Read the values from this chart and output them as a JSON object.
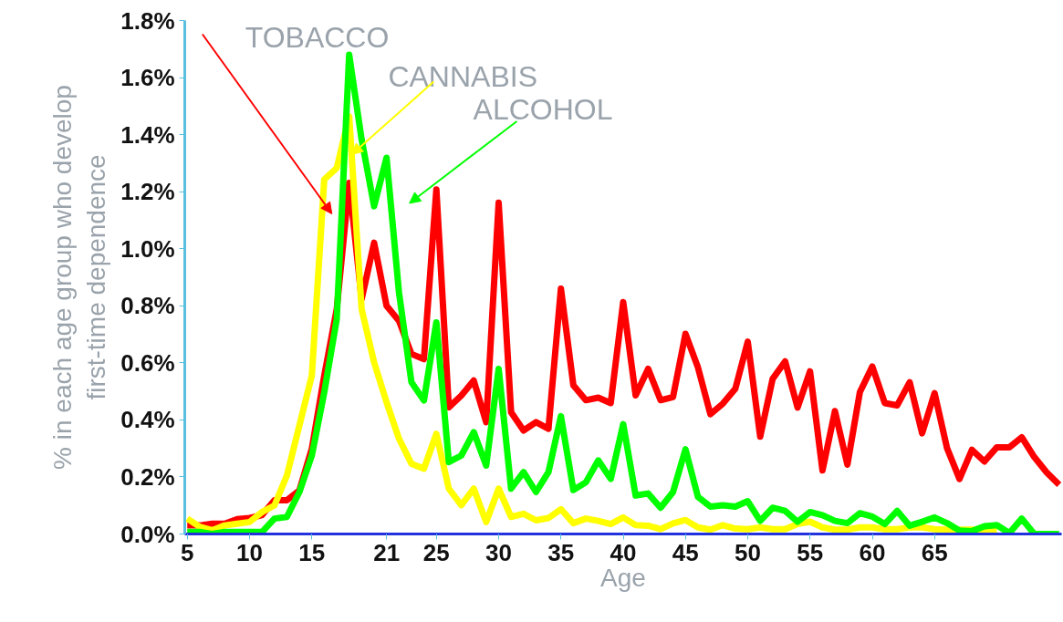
{
  "chart_data": {
    "type": "line",
    "xlabel": "Age",
    "ylabel": "% in each age group who develop\nfirst-time dependence",
    "xlim": [
      4.8,
      75.2
    ],
    "xticks": [
      5,
      10,
      15,
      21,
      25,
      30,
      35,
      40,
      45,
      50,
      55,
      60,
      65
    ],
    "ylim": [
      0,
      1.8
    ],
    "yticks": [
      {
        "value": 0,
        "label": "0.0%"
      },
      {
        "value": 0.2,
        "label": "0.2%"
      },
      {
        "value": 0.4,
        "label": "0.4%"
      },
      {
        "value": 0.6,
        "label": "0.6%"
      },
      {
        "value": 0.8,
        "label": "0.8%"
      },
      {
        "value": 1.0,
        "label": "1.0%"
      },
      {
        "value": 1.2,
        "label": "1.2%"
      },
      {
        "value": 1.4,
        "label": "1.4%"
      },
      {
        "value": 1.6,
        "label": "1.6%"
      },
      {
        "value": 1.8,
        "label": "1.8%"
      }
    ],
    "grid": false,
    "line_style": "solid",
    "annotations": [
      "TOBACCO",
      {
        "text": "CANNABIS",
        "x": 18.2,
        "y": 1.33
      },
      "ALCOHOL"
    ],
    "series": [
      {
        "color": "#ff0000",
        "x": [
          5,
          6,
          7,
          8,
          9,
          10,
          11,
          12,
          13,
          14,
          15,
          16,
          17,
          18,
          19,
          20,
          21,
          22,
          23,
          24,
          25,
          26,
          27,
          28,
          29,
          30,
          31,
          32,
          33,
          34,
          35,
          36,
          37,
          38,
          39,
          40,
          41,
          42,
          43,
          44,
          45,
          46,
          47,
          48,
          49,
          50,
          51,
          52,
          53,
          54,
          55,
          56,
          57,
          58,
          59,
          60,
          61,
          62,
          63,
          64,
          65,
          66,
          67,
          68,
          69,
          70,
          71,
          72,
          73,
          74,
          75
        ],
        "values": [
          0.03,
          0.03,
          0.036,
          0.036,
          0.052,
          0.056,
          0.066,
          0.118,
          0.118,
          0.153,
          0.299,
          0.555,
          0.788,
          1.231,
          0.823,
          1.021,
          0.8,
          0.747,
          0.631,
          0.613,
          1.208,
          0.444,
          0.485,
          0.538,
          0.392,
          1.161,
          0.427,
          0.363,
          0.392,
          0.369,
          0.86,
          0.521,
          0.469,
          0.478,
          0.459,
          0.813,
          0.486,
          0.579,
          0.469,
          0.48,
          0.702,
          0.584,
          0.42,
          0.457,
          0.509,
          0.674,
          0.341,
          0.544,
          0.605,
          0.443,
          0.57,
          0.223,
          0.431,
          0.243,
          0.497,
          0.587,
          0.459,
          0.451,
          0.532,
          0.353,
          0.494,
          0.301,
          0.193,
          0.295,
          0.254,
          0.304,
          0.304,
          0.339,
          0.27,
          0.216,
          0.173
        ]
      },
      {
        "color": "#ffff00",
        "x": [
          5,
          6,
          7,
          8,
          9,
          10,
          11,
          12,
          13,
          14,
          15,
          16,
          17,
          18,
          19,
          20,
          21,
          22,
          23,
          24,
          25,
          26,
          27,
          28,
          29,
          30,
          31,
          32,
          33,
          34,
          35,
          36,
          37,
          38,
          39,
          40,
          41,
          42,
          43,
          44,
          45,
          46,
          47,
          48,
          49,
          50,
          51,
          52,
          53,
          54,
          55,
          56,
          57,
          58,
          59,
          60,
          61,
          62,
          63,
          64,
          65,
          66,
          67,
          68,
          69,
          70
        ],
        "values": [
          0.054,
          0.025,
          0.013,
          0.03,
          0.036,
          0.042,
          0.077,
          0.1,
          0.205,
          0.38,
          0.555,
          1.243,
          1.283,
          1.464,
          0.788,
          0.602,
          0.462,
          0.334,
          0.246,
          0.229,
          0.351,
          0.159,
          0.101,
          0.159,
          0.042,
          0.159,
          0.06,
          0.071,
          0.048,
          0.056,
          0.087,
          0.038,
          0.054,
          0.046,
          0.035,
          0.058,
          0.031,
          0.029,
          0.017,
          0.037,
          0.049,
          0.023,
          0.015,
          0.031,
          0.019,
          0.017,
          0.023,
          0.017,
          0.017,
          0.035,
          0.043,
          0.023,
          0.015,
          0.015,
          0.023,
          0.023,
          0.017,
          0.017,
          0.023,
          0.023,
          0.017,
          0.015,
          0.015,
          0.015,
          0.015,
          0.015
        ]
      },
      {
        "color": "#00ff00",
        "x": [
          5,
          6,
          7,
          8,
          9,
          10,
          11,
          12,
          13,
          14,
          15,
          16,
          17,
          18,
          19,
          20,
          21,
          22,
          23,
          24,
          25,
          26,
          27,
          28,
          29,
          30,
          31,
          32,
          33,
          34,
          35,
          36,
          37,
          38,
          39,
          40,
          41,
          42,
          43,
          44,
          45,
          46,
          47,
          48,
          49,
          50,
          51,
          52,
          53,
          54,
          55,
          56,
          57,
          58,
          59,
          60,
          61,
          62,
          63,
          64,
          65,
          66,
          67,
          68,
          69,
          70,
          71,
          72,
          73,
          74,
          75
        ],
        "values": [
          0.007,
          0.007,
          0.0,
          0.007,
          0.007,
          0.007,
          0.007,
          0.054,
          0.06,
          0.147,
          0.275,
          0.497,
          0.753,
          1.68,
          1.383,
          1.149,
          1.319,
          0.846,
          0.532,
          0.468,
          0.742,
          0.252,
          0.275,
          0.357,
          0.24,
          0.579,
          0.159,
          0.217,
          0.147,
          0.217,
          0.413,
          0.154,
          0.181,
          0.258,
          0.193,
          0.385,
          0.135,
          0.142,
          0.092,
          0.147,
          0.297,
          0.13,
          0.096,
          0.101,
          0.096,
          0.115,
          0.046,
          0.092,
          0.081,
          0.043,
          0.077,
          0.066,
          0.046,
          0.038,
          0.073,
          0.061,
          0.035,
          0.081,
          0.029,
          0.043,
          0.058,
          0.038,
          0.012,
          0.01,
          0.027,
          0.031,
          0.003,
          0.054,
          0.0,
          0.0,
          0.0
        ]
      }
    ]
  }
}
